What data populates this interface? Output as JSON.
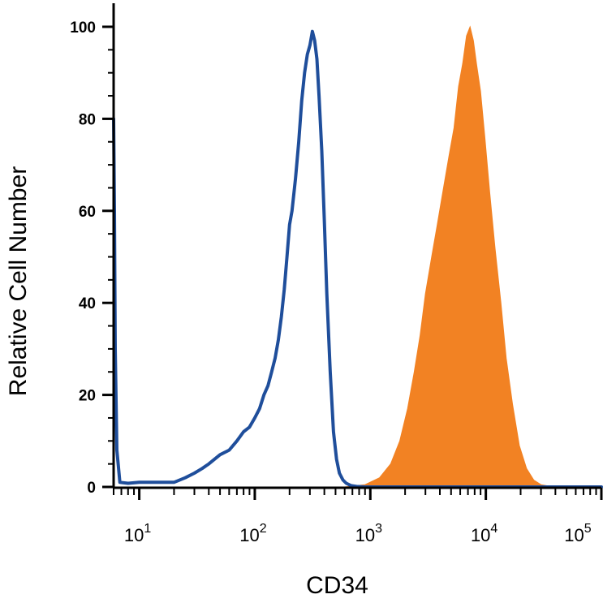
{
  "chart_data": {
    "type": "area",
    "title": "",
    "xlabel": "CD34",
    "ylabel": "Relative Cell Number",
    "x_scale": "log",
    "xlim": [
      6,
      100000
    ],
    "ylim": [
      0,
      100
    ],
    "y_ticks": [
      0,
      20,
      40,
      60,
      80,
      100
    ],
    "y_tick_labels": [
      "0",
      "20",
      "40",
      "60",
      "80",
      "100"
    ],
    "x_ticks": [
      10,
      100,
      1000,
      10000,
      100000
    ],
    "x_tick_labels": [
      {
        "base": "10",
        "exp": "1"
      },
      {
        "base": "10",
        "exp": "2"
      },
      {
        "base": "10",
        "exp": "3"
      },
      {
        "base": "10",
        "exp": "4"
      },
      {
        "base": "10",
        "exp": "5"
      }
    ],
    "grid": false,
    "legend": "none",
    "series": [
      {
        "style": "filled",
        "color": "#F28223",
        "x": [
          6,
          600,
          900,
          1200,
          1500,
          1800,
          2100,
          2400,
          2700,
          3000,
          3400,
          3800,
          4300,
          4800,
          5300,
          5800,
          6300,
          6800,
          7300,
          7800,
          8300,
          9000,
          9800,
          10800,
          12000,
          13500,
          15000,
          17000,
          19500,
          22500,
          26000,
          30000,
          35000,
          40000,
          50000,
          100000
        ],
        "y": [
          0,
          0,
          0.5,
          2,
          5,
          10,
          17,
          25,
          33,
          42,
          50,
          57,
          65,
          72,
          78,
          87,
          92,
          98,
          100,
          97,
          92,
          86,
          76,
          64,
          52,
          40,
          28,
          18,
          9,
          4,
          1.5,
          0.5,
          0.2,
          0,
          0,
          0
        ]
      },
      {
        "style": "outline",
        "color": "#1F4E9B",
        "x": [
          6,
          6.1,
          6.2,
          6.4,
          6.8,
          8,
          10,
          14,
          20,
          25,
          30,
          35,
          40,
          50,
          60,
          70,
          80,
          90,
          100,
          110,
          120,
          130,
          140,
          150,
          160,
          170,
          180,
          190,
          200,
          210,
          225,
          240,
          255,
          270,
          285,
          300,
          315,
          330,
          345,
          360,
          380,
          400,
          420,
          450,
          480,
          510,
          540,
          580,
          620,
          680,
          760,
          900,
          1100,
          1500,
          3000,
          10000,
          100000
        ],
        "y": [
          80,
          60,
          30,
          8,
          1,
          0.8,
          1,
          1,
          1,
          2,
          3,
          4,
          5,
          7,
          8,
          10,
          12,
          13,
          15,
          17,
          20,
          22,
          25,
          28,
          32,
          37,
          43,
          50,
          57,
          60,
          67,
          75,
          84,
          90,
          94,
          96,
          99,
          97,
          93,
          85,
          73,
          58,
          42,
          25,
          12,
          6,
          3,
          1.5,
          0.8,
          0.3,
          0.1,
          0,
          0,
          0,
          0,
          0,
          0
        ]
      }
    ]
  }
}
